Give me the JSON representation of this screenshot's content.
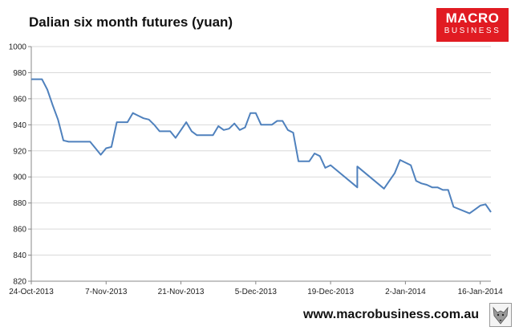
{
  "header": {
    "title": "Dalian six month futures (yuan)"
  },
  "logo": {
    "line1": "MACRO",
    "line2": "BUSINESS",
    "color": "#e11b22"
  },
  "footer": {
    "website": "www.macrobusiness.com.au",
    "mascot_icon": "fox-icon"
  },
  "chart_data": {
    "type": "line",
    "title": "Dalian six month futures (yuan)",
    "xlabel": "",
    "ylabel": "",
    "ylim": [
      820,
      1000
    ],
    "yticks": [
      820,
      840,
      860,
      880,
      900,
      920,
      940,
      960,
      980,
      1000
    ],
    "xlim": [
      "2013-10-24",
      "2014-01-18"
    ],
    "xticks": [
      "24-Oct-2013",
      "7-Nov-2013",
      "21-Nov-2013",
      "5-Dec-2013",
      "19-Dec-2013",
      "2-Jan-2014",
      "16-Jan-2014"
    ],
    "xtick_dates": [
      "2013-10-24",
      "2013-11-07",
      "2013-11-21",
      "2013-12-05",
      "2013-12-19",
      "2014-01-02",
      "2014-01-16"
    ],
    "grid": {
      "horizontal": true,
      "vertical": false
    },
    "line_color": "#4f81bd",
    "series": [
      {
        "points": [
          [
            "2013-10-24",
            975
          ],
          [
            "2013-10-25",
            975
          ],
          [
            "2013-10-26",
            975
          ],
          [
            "2013-10-27",
            967
          ],
          [
            "2013-10-28",
            955
          ],
          [
            "2013-10-29",
            944
          ],
          [
            "2013-10-30",
            928
          ],
          [
            "2013-10-31",
            927
          ],
          [
            "2013-11-01",
            927
          ],
          [
            "2013-11-02",
            927
          ],
          [
            "2013-11-03",
            927
          ],
          [
            "2013-11-04",
            927
          ],
          [
            "2013-11-05",
            922
          ],
          [
            "2013-11-06",
            917
          ],
          [
            "2013-11-07",
            922
          ],
          [
            "2013-11-08",
            923
          ],
          [
            "2013-11-09",
            942
          ],
          [
            "2013-11-10",
            942
          ],
          [
            "2013-11-11",
            942
          ],
          [
            "2013-11-12",
            949
          ],
          [
            "2013-11-13",
            947
          ],
          [
            "2013-11-14",
            945
          ],
          [
            "2013-11-15",
            944
          ],
          [
            "2013-11-16",
            940
          ],
          [
            "2013-11-17",
            935
          ],
          [
            "2013-11-18",
            935
          ],
          [
            "2013-11-19",
            935
          ],
          [
            "2013-11-20",
            930
          ],
          [
            "2013-11-21",
            936
          ],
          [
            "2013-11-22",
            942
          ],
          [
            "2013-11-23",
            935
          ],
          [
            "2013-11-24",
            932
          ],
          [
            "2013-11-25",
            932
          ],
          [
            "2013-11-26",
            932
          ],
          [
            "2013-11-27",
            932
          ],
          [
            "2013-11-28",
            939
          ],
          [
            "2013-11-29",
            936
          ],
          [
            "2013-11-30",
            937
          ],
          [
            "2013-12-01",
            941
          ],
          [
            "2013-12-02",
            936
          ],
          [
            "2013-12-03",
            938
          ],
          [
            "2013-12-04",
            949
          ],
          [
            "2013-12-05",
            949
          ],
          [
            "2013-12-06",
            940
          ],
          [
            "2013-12-07",
            940
          ],
          [
            "2013-12-08",
            940
          ],
          [
            "2013-12-09",
            943
          ],
          [
            "2013-12-10",
            943
          ],
          [
            "2013-12-11",
            936
          ],
          [
            "2013-12-12",
            934
          ],
          [
            "2013-12-13",
            912
          ],
          [
            "2013-12-14",
            912
          ],
          [
            "2013-12-15",
            912
          ],
          [
            "2013-12-16",
            918
          ],
          [
            "2013-12-17",
            916
          ],
          [
            "2013-12-18",
            907
          ],
          [
            "2013-12-19",
            909
          ],
          [
            "2013-12-24",
            892
          ],
          [
            "2013-12-24",
            908
          ],
          [
            "2013-12-29",
            891
          ],
          [
            "2013-12-30",
            897
          ],
          [
            "2013-12-31",
            903
          ],
          [
            "2014-01-01",
            913
          ],
          [
            "2014-01-02",
            911
          ],
          [
            "2014-01-03",
            909
          ],
          [
            "2014-01-04",
            897
          ],
          [
            "2014-01-05",
            895
          ],
          [
            "2014-01-06",
            894
          ],
          [
            "2014-01-07",
            892
          ],
          [
            "2014-01-08",
            892
          ],
          [
            "2014-01-09",
            890
          ],
          [
            "2014-01-10",
            890
          ],
          [
            "2014-01-11",
            877
          ],
          [
            "2014-01-14",
            872
          ],
          [
            "2014-01-15",
            875
          ],
          [
            "2014-01-16",
            878
          ],
          [
            "2014-01-17",
            879
          ],
          [
            "2014-01-18",
            873
          ]
        ]
      }
    ]
  }
}
